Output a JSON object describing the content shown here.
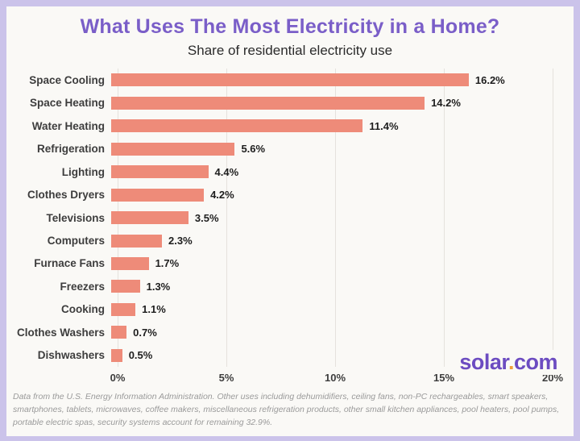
{
  "header": {
    "title": "What Uses The Most Electricity in a Home?",
    "subtitle": "Share of residential electricity use"
  },
  "chart_data": {
    "type": "bar",
    "orientation": "horizontal",
    "title": "What Uses The Most Electricity in a Home?",
    "subtitle": "Share of residential electricity use",
    "categories": [
      "Space Cooling",
      "Space Heating",
      "Water Heating",
      "Refrigeration",
      "Lighting",
      "Clothes Dryers",
      "Televisions",
      "Computers",
      "Furnace Fans",
      "Freezers",
      "Cooking",
      "Clothes Washers",
      "Dishwashers"
    ],
    "values": [
      16.2,
      14.2,
      11.4,
      5.6,
      4.4,
      4.2,
      3.5,
      2.3,
      1.7,
      1.3,
      1.1,
      0.7,
      0.5
    ],
    "value_labels": [
      "16.2%",
      "14.2%",
      "11.4%",
      "5.6%",
      "4.4%",
      "4.2%",
      "3.5%",
      "2.3%",
      "1.7%",
      "1.3%",
      "1.1%",
      "0.7%",
      "0.5%"
    ],
    "xlabel": "",
    "ylabel": "",
    "xlim": [
      0,
      20
    ],
    "x_ticks": [
      "0%",
      "5%",
      "10%",
      "15%",
      "20%"
    ],
    "grid": "vertical",
    "bar_color": "#EE8B79",
    "source_lines": [
      "Data from the U.S. Energy Information Administration. Other uses including dehumidifiers, ceiling fans, non-PC rechargeables, smart speakers,",
      "smartphones, tablets, microwaves, coffee makers, miscellaneous refrigeration products, other small kitchen appliances, pool heaters, pool pumps,",
      "portable electric spas, security systems account for remaining 32.9%."
    ]
  },
  "branding": {
    "logo_part1": "solar",
    "logo_dot": ".",
    "logo_part2": "com",
    "logo_color": "#6C4CC1",
    "logo_dot_color": "#F0A03C"
  },
  "colors": {
    "frame": "#CBC3EA",
    "background": "#FAF9F6",
    "title": "#7A5EC8",
    "bar": "#EE8B79"
  }
}
